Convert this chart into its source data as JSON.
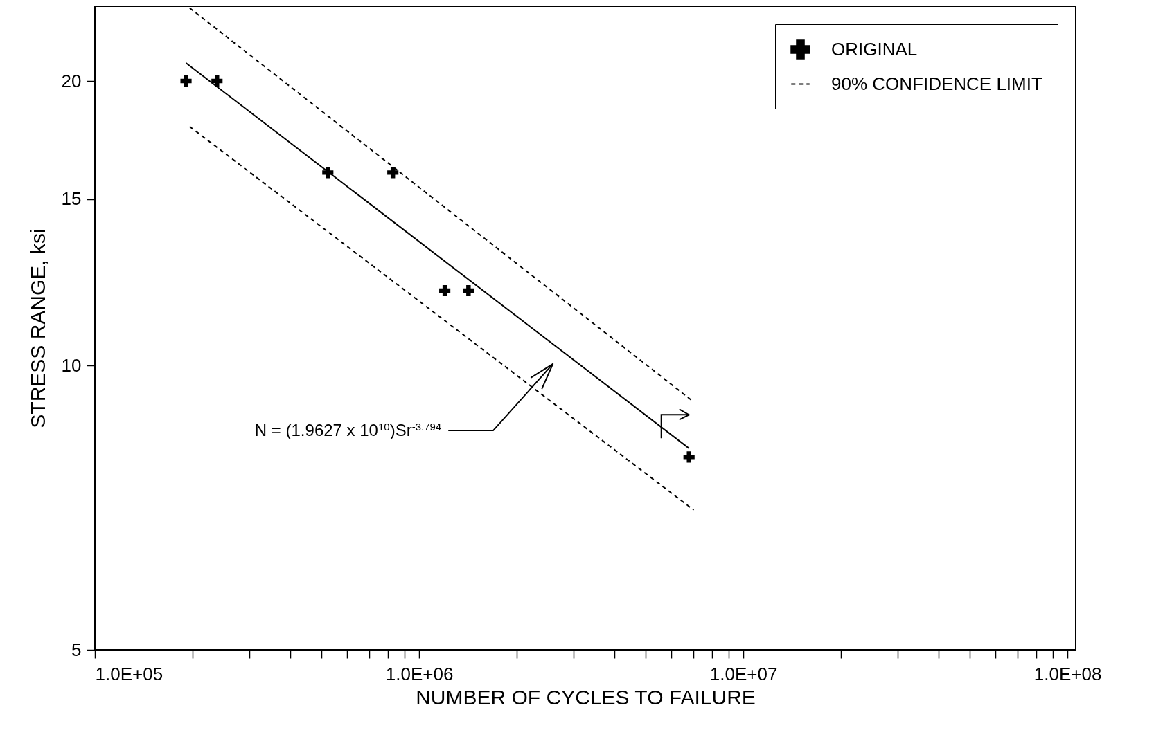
{
  "chart_data": {
    "type": "line",
    "xlabel": "NUMBER OF CYCLES TO FAILURE",
    "ylabel": "STRESS RANGE, ksi",
    "log": "xy",
    "xlim": [
      100000,
      106000000
    ],
    "ylim": [
      5,
      24
    ],
    "xticks": [
      {
        "value": 100000,
        "label": "1.0E+05"
      },
      {
        "value": 200000,
        "label": null
      },
      {
        "value": 300000,
        "label": null
      },
      {
        "value": 400000,
        "label": null
      },
      {
        "value": 500000,
        "label": null
      },
      {
        "value": 600000,
        "label": null
      },
      {
        "value": 700000,
        "label": null
      },
      {
        "value": 800000,
        "label": null
      },
      {
        "value": 900000,
        "label": null
      },
      {
        "value": 1000000,
        "label": "1.0E+06"
      },
      {
        "value": 2000000,
        "label": null
      },
      {
        "value": 3000000,
        "label": null
      },
      {
        "value": 4000000,
        "label": null
      },
      {
        "value": 5000000,
        "label": null
      },
      {
        "value": 6000000,
        "label": null
      },
      {
        "value": 7000000,
        "label": null
      },
      {
        "value": 8000000,
        "label": null
      },
      {
        "value": 9000000,
        "label": null
      },
      {
        "value": 10000000,
        "label": "1.0E+07"
      },
      {
        "value": 20000000,
        "label": null
      },
      {
        "value": 30000000,
        "label": null
      },
      {
        "value": 40000000,
        "label": null
      },
      {
        "value": 50000000,
        "label": null
      },
      {
        "value": 60000000,
        "label": null
      },
      {
        "value": 70000000,
        "label": null
      },
      {
        "value": 80000000,
        "label": null
      },
      {
        "value": 90000000,
        "label": null
      },
      {
        "value": 100000000,
        "label": "1.0E+08"
      }
    ],
    "yticks": [
      5,
      10,
      15,
      20
    ],
    "grid": false,
    "legend": "top right",
    "annotations": [
      "N = (1.9627 x 10$^{10}$)Sr$^{-3.794}$"
    ],
    "series": [
      {
        "name": "ORIGINAL",
        "type": "scatter",
        "marker": "cross",
        "color": "#000000",
        "x": [
          191000,
          238000,
          523000,
          830000,
          1200000,
          1420000,
          6800000
        ],
        "values": [
          20,
          20,
          16,
          16,
          12,
          12,
          8
        ]
      },
      {
        "line_style": "solid",
        "marker": "none",
        "color": "#000000",
        "x": [
          191000,
          6800000
        ],
        "values": [
          20.9,
          8.17
        ]
      },
      {
        "name": "90% CONFIDENCE LIMIT",
        "line_style": "dashed",
        "marker": "none",
        "color": "#000000",
        "x": [
          196000,
          7030000
        ],
        "values": [
          23.9,
          9.15
        ]
      },
      {
        "line_style": "dashed",
        "marker": "none",
        "color": "#000000",
        "x": [
          196000,
          7030000
        ],
        "values": [
          17.9,
          7.03
        ]
      }
    ]
  }
}
